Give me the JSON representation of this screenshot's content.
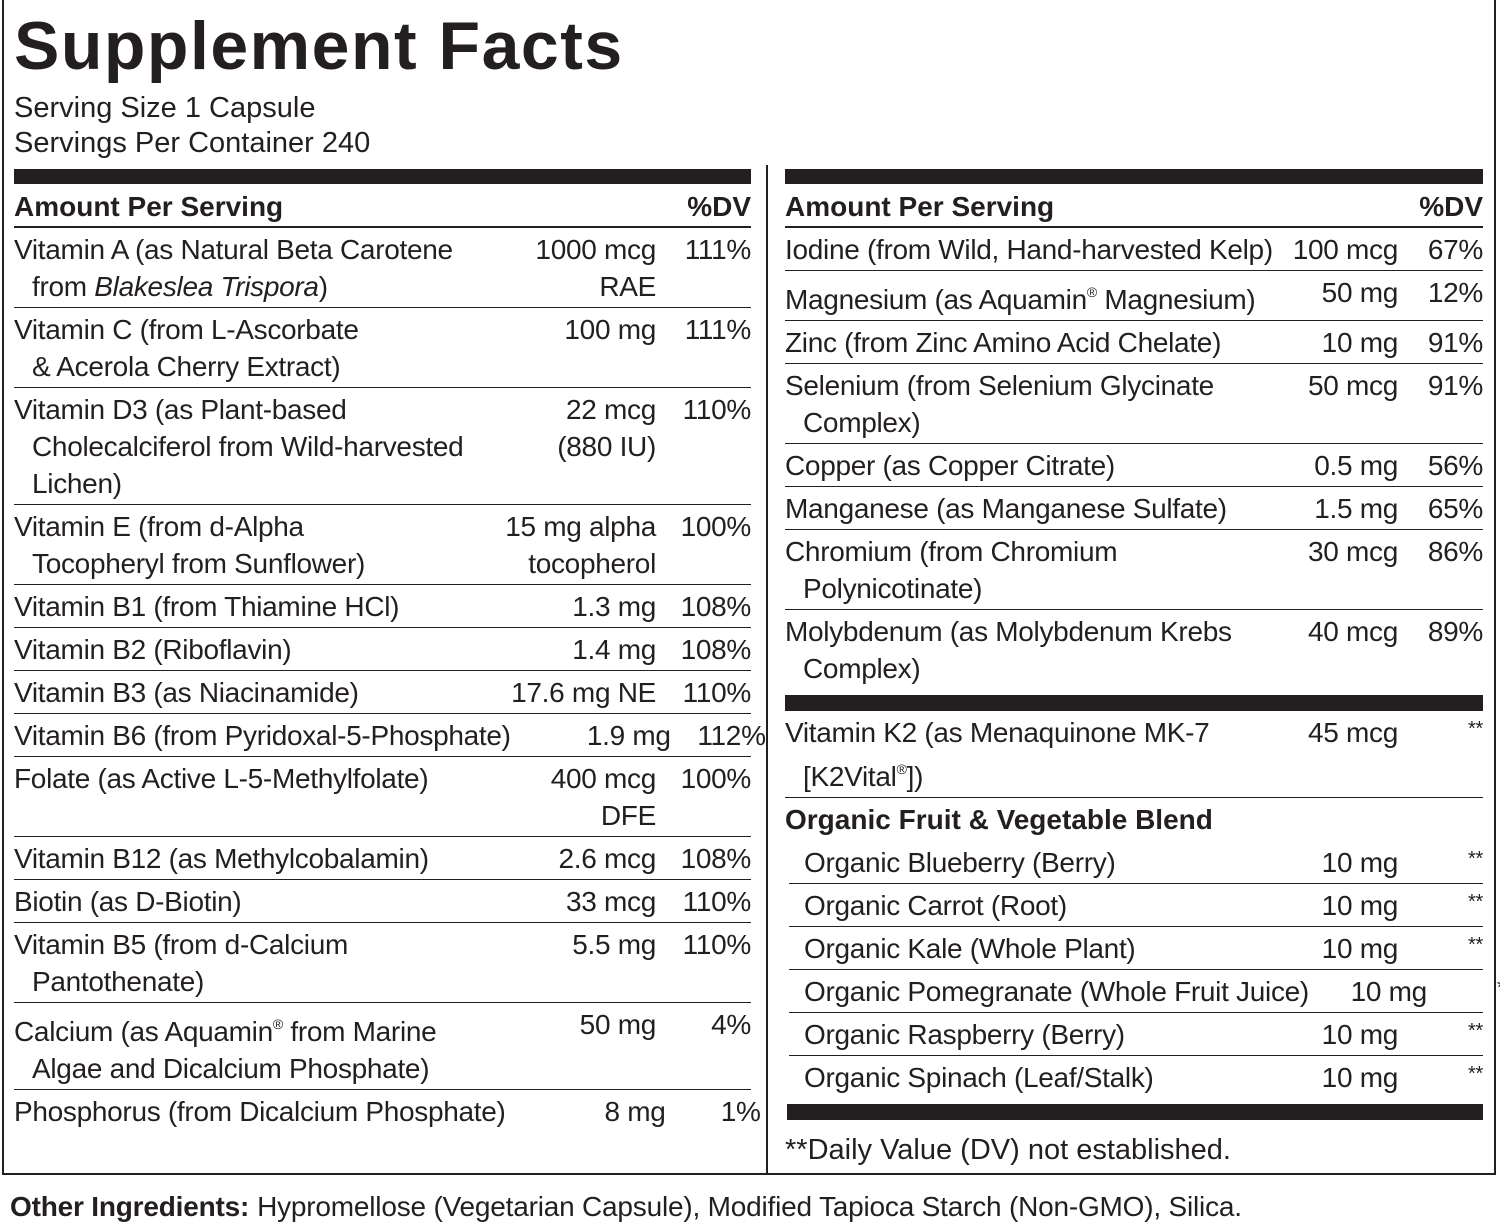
{
  "title": "Supplement Facts",
  "serving_size": "Serving Size 1 Capsule",
  "servings_per_container": "Servings Per Container 240",
  "left": {
    "header": {
      "amount": "Amount Per Serving",
      "dv": "%DV"
    },
    "rows": [
      {
        "name": [
          "Vitamin A (as Natural Beta Carotene",
          [
            {
              "text": "from "
            },
            {
              "text": "Blakeslea Trispora",
              "italic": true
            },
            {
              "text": ")"
            }
          ]
        ],
        "amount": [
          "1000 mcg",
          "RAE"
        ],
        "dv": "111%"
      },
      {
        "name": [
          "Vitamin C (from L-Ascorbate",
          "& Acerola Cherry Extract)"
        ],
        "amount": [
          "100 mg"
        ],
        "dv": "111%"
      },
      {
        "name": [
          "Vitamin D3 (as Plant-based",
          "Cholecalciferol from Wild-harvested",
          "Lichen)"
        ],
        "amount": [
          "22 mcg",
          "(880 IU)"
        ],
        "dv": "110%"
      },
      {
        "name": [
          "Vitamin E (from d-Alpha",
          "Tocopheryl from Sunflower)"
        ],
        "amount": [
          "15 mg alpha",
          "tocopherol"
        ],
        "dv": "100%"
      },
      {
        "name": [
          "Vitamin B1 (from Thiamine HCl)"
        ],
        "amount": [
          "1.3 mg"
        ],
        "dv": "108%"
      },
      {
        "name": [
          "Vitamin B2 (Riboflavin)"
        ],
        "amount": [
          "1.4 mg"
        ],
        "dv": "108%"
      },
      {
        "name": [
          "Vitamin B3 (as Niacinamide)"
        ],
        "amount": [
          "17.6 mg NE"
        ],
        "dv": "110%"
      },
      {
        "name": [
          "Vitamin B6 (from Pyridoxal-5-Phosphate)"
        ],
        "amount": [
          "1.9 mg"
        ],
        "dv": "112%"
      },
      {
        "name": [
          "Folate (as Active L-5-Methylfolate)"
        ],
        "amount": [
          "400 mcg",
          "DFE"
        ],
        "dv": "100%"
      },
      {
        "name": [
          "Vitamin B12 (as Methylcobalamin)"
        ],
        "amount": [
          "2.6 mcg"
        ],
        "dv": "108%"
      },
      {
        "name": [
          "Biotin (as D-Biotin)"
        ],
        "amount": [
          "33 mcg"
        ],
        "dv": "110%"
      },
      {
        "name": [
          "Vitamin B5 (from d-Calcium",
          "Pantothenate)"
        ],
        "amount": [
          "5.5 mg"
        ],
        "dv": "110%"
      },
      {
        "name": [
          [
            {
              "text": "Calcium (as Aquamin"
            },
            {
              "text": "®",
              "sup": true
            },
            {
              "text": " from Marine"
            }
          ],
          "Algae and Dicalcium Phosphate)"
        ],
        "amount": [
          "50 mg"
        ],
        "dv": "4%"
      },
      {
        "name": [
          "Phosphorus (from Dicalcium Phosphate)"
        ],
        "amount": [
          "8 mg"
        ],
        "dv": "1%"
      }
    ]
  },
  "right": {
    "header": {
      "amount": "Amount Per Serving",
      "dv": "%DV"
    },
    "rows": [
      {
        "name": [
          "Iodine (from Wild, Hand-harvested Kelp)"
        ],
        "amount": [
          "100 mcg"
        ],
        "dv": "67%"
      },
      {
        "name": [
          [
            {
              "text": "Magnesium (as Aquamin"
            },
            {
              "text": "®",
              "sup": true
            },
            {
              "text": " Magnesium)"
            }
          ]
        ],
        "amount": [
          "50 mg"
        ],
        "dv": "12%"
      },
      {
        "name": [
          "Zinc (from Zinc Amino Acid Chelate)"
        ],
        "amount": [
          "10 mg"
        ],
        "dv": "91%"
      },
      {
        "name": [
          "Selenium (from Selenium Glycinate",
          "Complex)"
        ],
        "amount": [
          "50 mcg"
        ],
        "dv": "91%"
      },
      {
        "name": [
          "Copper (as Copper Citrate)"
        ],
        "amount": [
          "0.5 mg"
        ],
        "dv": "56%"
      },
      {
        "name": [
          "Manganese (as Manganese Sulfate)"
        ],
        "amount": [
          "1.5 mg"
        ],
        "dv": "65%"
      },
      {
        "name": [
          "Chromium (from Chromium",
          "Polynicotinate)"
        ],
        "amount": [
          "30 mcg"
        ],
        "dv": "86%"
      },
      {
        "name": [
          "Molybdenum (as Molybdenum Krebs",
          "Complex)"
        ],
        "amount": [
          "40 mcg"
        ],
        "dv": "89%"
      }
    ],
    "k2": {
      "name": [
        "Vitamin K2 (as Menaquinone MK-7",
        [
          {
            "text": "[K2Vital"
          },
          {
            "text": "®",
            "sup": true
          },
          {
            "text": "])"
          }
        ]
      ],
      "amount": [
        "45 mcg"
      ],
      "dv": "**"
    },
    "blend": {
      "title": "Organic Fruit & Vegetable Blend",
      "rows": [
        {
          "name": [
            "Organic Blueberry (Berry)"
          ],
          "amount": [
            "10 mg"
          ],
          "dv": "**"
        },
        {
          "name": [
            "Organic Carrot (Root)"
          ],
          "amount": [
            "10 mg"
          ],
          "dv": "**"
        },
        {
          "name": [
            "Organic Kale (Whole Plant)"
          ],
          "amount": [
            "10 mg"
          ],
          "dv": "**"
        },
        {
          "name": [
            "Organic Pomegranate (Whole Fruit Juice)"
          ],
          "amount": [
            "10 mg"
          ],
          "dv": "**"
        },
        {
          "name": [
            "Organic Raspberry (Berry)"
          ],
          "amount": [
            "10 mg"
          ],
          "dv": "**"
        },
        {
          "name": [
            "Organic  Spinach (Leaf/Stalk)"
          ],
          "amount": [
            "10 mg"
          ],
          "dv": "**"
        }
      ]
    },
    "footnote": "**Daily Value (DV) not established."
  },
  "other": {
    "label": "Other Ingredients:",
    "text": "Hypromellose (Vegetarian Capsule), Modified Tapioca Starch (Non-GMO), Silica."
  }
}
